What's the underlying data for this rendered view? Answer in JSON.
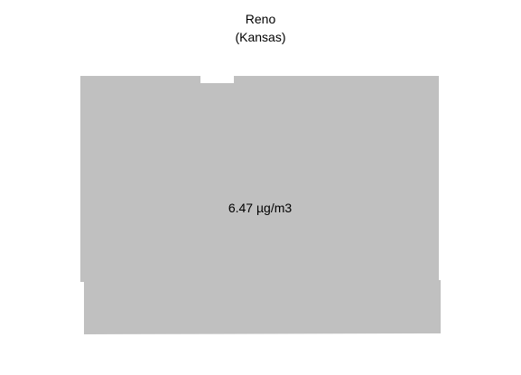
{
  "map": {
    "title_line1": "Reno",
    "title_line2": "(Kansas)",
    "region_fill": "#c0c0c0",
    "value_label": "6.47 µg/m3"
  }
}
